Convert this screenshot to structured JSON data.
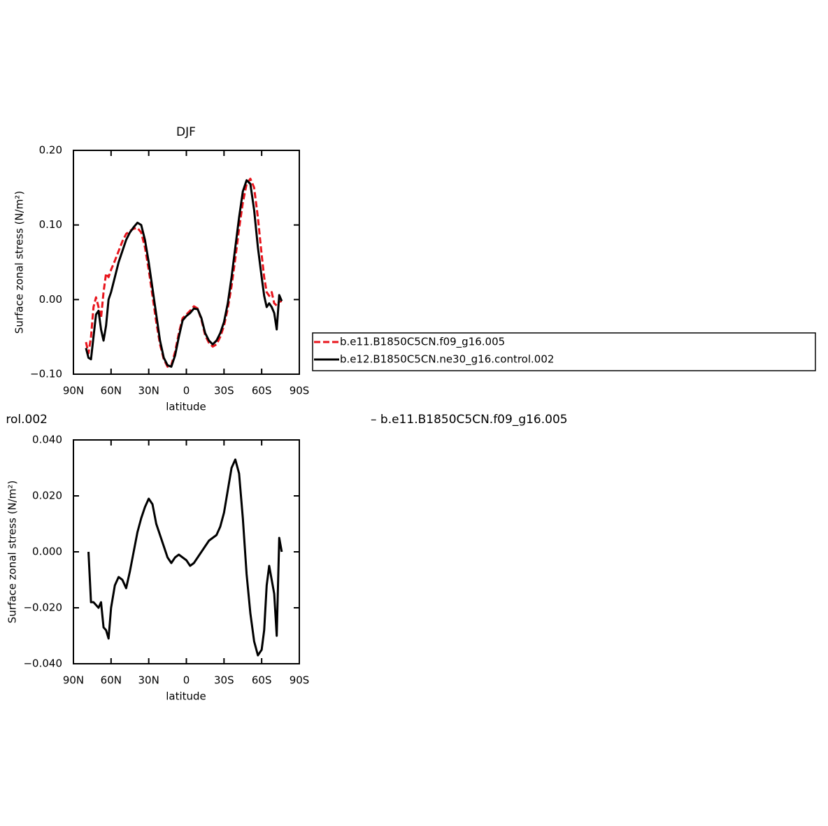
{
  "chart_data": [
    {
      "type": "line",
      "title": "DJF",
      "ylabel": "Surface zonal stress (N/m²)",
      "xlabel": "latitude",
      "xlim": [
        90,
        -90
      ],
      "xticks": [
        {
          "value": 90,
          "label": "90N"
        },
        {
          "value": 60,
          "label": "60N"
        },
        {
          "value": 30,
          "label": "30N"
        },
        0,
        {
          "value": -30,
          "label": "30S"
        },
        {
          "value": -60,
          "label": "60S"
        },
        {
          "value": -90,
          "label": "90S"
        }
      ],
      "ylim": [
        -0.1,
        0.2
      ],
      "yticks": [
        {
          "value": -0.1,
          "label": "−0.10"
        },
        {
          "value": 0,
          "label": "0.00"
        },
        {
          "value": 0.1,
          "label": "0.10"
        },
        {
          "value": 0.2,
          "label": "0.20"
        }
      ],
      "legend": "right",
      "x": [
        80,
        78,
        76,
        74,
        72,
        70,
        68,
        66,
        64,
        62,
        60,
        57,
        54,
        51,
        48,
        45,
        42,
        39,
        36,
        33,
        30,
        27,
        24,
        21,
        18,
        15,
        12,
        9,
        6,
        3,
        0,
        -3,
        -6,
        -9,
        -12,
        -15,
        -18,
        -21,
        -24,
        -27,
        -30,
        -33,
        -36,
        -39,
        -42,
        -45,
        -48,
        -51,
        -54,
        -57,
        -60,
        -62,
        -64,
        -66,
        -68,
        -70,
        -72,
        -74,
        -76,
        -78
      ],
      "series": [
        {
          "name": "b.e11.B1850C5CN.f09_g16.005",
          "color": "#e8141c",
          "dash": true,
          "values": [
            -0.057,
            -0.072,
            -0.05,
            -0.01,
            0.003,
            -0.01,
            -0.025,
            0.01,
            0.035,
            0.03,
            0.04,
            0.052,
            0.065,
            0.078,
            0.088,
            0.092,
            0.095,
            0.096,
            0.09,
            0.07,
            0.04,
            0.005,
            -0.03,
            -0.06,
            -0.08,
            -0.09,
            -0.088,
            -0.07,
            -0.045,
            -0.025,
            -0.02,
            -0.015,
            -0.009,
            -0.012,
            -0.027,
            -0.048,
            -0.058,
            -0.063,
            -0.06,
            -0.05,
            -0.035,
            -0.012,
            0.018,
            0.055,
            0.095,
            0.13,
            0.155,
            0.162,
            0.15,
            0.11,
            0.06,
            0.03,
            0.01,
            0.005,
            0.01,
            -0.005,
            -0.008,
            -0.003,
            -0.002,
            null
          ]
        },
        {
          "name": "b.e12.B1850C5CN.ne30_g16.control.002",
          "color": "#000000",
          "dash": false,
          "values": [
            -0.065,
            -0.078,
            -0.08,
            -0.05,
            -0.02,
            -0.015,
            -0.04,
            -0.055,
            -0.035,
            0.0,
            0.01,
            0.03,
            0.05,
            0.065,
            0.08,
            0.09,
            0.097,
            0.103,
            0.1,
            0.08,
            0.05,
            0.015,
            -0.02,
            -0.055,
            -0.078,
            -0.088,
            -0.09,
            -0.075,
            -0.05,
            -0.028,
            -0.022,
            -0.018,
            -0.012,
            -0.013,
            -0.025,
            -0.045,
            -0.055,
            -0.06,
            -0.055,
            -0.045,
            -0.03,
            -0.005,
            0.03,
            0.07,
            0.11,
            0.145,
            0.16,
            0.155,
            0.12,
            0.07,
            0.03,
            0.005,
            -0.01,
            -0.005,
            -0.01,
            -0.018,
            -0.04,
            0.006,
            -0.002,
            null
          ]
        }
      ]
    },
    {
      "type": "line",
      "title_left": "rol.002",
      "title_right": "– b.e11.B1850C5CN.f09_g16.005",
      "ylabel": "Surface zonal stress (N/m²)",
      "xlabel": "latitude",
      "xlim": [
        90,
        -90
      ],
      "xticks": [
        {
          "value": 90,
          "label": "90N"
        },
        {
          "value": 60,
          "label": "60N"
        },
        {
          "value": 30,
          "label": "30N"
        },
        0,
        {
          "value": -30,
          "label": "30S"
        },
        {
          "value": -60,
          "label": "60S"
        },
        {
          "value": -90,
          "label": "90S"
        }
      ],
      "ylim": [
        -0.04,
        0.04
      ],
      "yticks": [
        {
          "value": -0.04,
          "label": "−0.040"
        },
        {
          "value": -0.02,
          "label": "−0.020"
        },
        {
          "value": 0,
          "label": "0.000"
        },
        {
          "value": 0.02,
          "label": "0.020"
        },
        {
          "value": 0.04,
          "label": "0.040"
        }
      ],
      "x": [
        80,
        78,
        76,
        74,
        72,
        70,
        68,
        66,
        64,
        62,
        60,
        57,
        54,
        51,
        48,
        45,
        42,
        39,
        36,
        33,
        30,
        27,
        24,
        21,
        18,
        15,
        12,
        9,
        6,
        3,
        0,
        -3,
        -6,
        -9,
        -12,
        -15,
        -18,
        -21,
        -24,
        -27,
        -30,
        -33,
        -36,
        -39,
        -42,
        -45,
        -48,
        -51,
        -54,
        -57,
        -60,
        -62,
        -64,
        -66,
        -68,
        -70,
        -72,
        -74,
        -76,
        -78
      ],
      "series": [
        {
          "color": "#000000",
          "dash": false,
          "values": [
            null,
            0.0,
            -0.018,
            -0.018,
            -0.019,
            -0.02,
            -0.018,
            -0.027,
            -0.028,
            -0.031,
            -0.02,
            -0.012,
            -0.009,
            -0.01,
            -0.013,
            -0.007,
            0.0,
            0.007,
            0.012,
            0.016,
            0.019,
            0.017,
            0.01,
            0.006,
            0.002,
            -0.002,
            -0.004,
            -0.002,
            -0.001,
            -0.002,
            -0.003,
            -0.005,
            -0.004,
            -0.002,
            0.0,
            0.002,
            0.004,
            0.005,
            0.006,
            0.009,
            0.014,
            0.022,
            0.03,
            0.033,
            0.028,
            0.012,
            -0.008,
            -0.022,
            -0.032,
            -0.037,
            -0.035,
            -0.028,
            -0.012,
            -0.005,
            -0.01,
            -0.015,
            -0.03,
            0.005,
            0.0,
            null
          ]
        }
      ]
    }
  ]
}
